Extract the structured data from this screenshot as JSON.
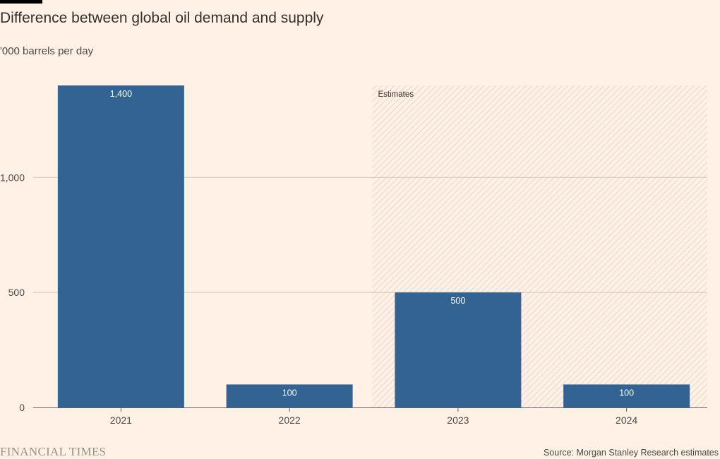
{
  "title": "Difference between global oil demand and supply",
  "subtitle": "'000 barrels per day",
  "source": "Source: Morgan Stanley Research estimates",
  "logo": "FINANCIAL TIMES",
  "colors": {
    "bar": "#336392",
    "background": "#FFF1E5",
    "grid": "#CEC6B9",
    "hatch": "#F0DDD4"
  },
  "chart_data": {
    "type": "bar",
    "categories": [
      "2021",
      "2022",
      "2023",
      "2024"
    ],
    "values": [
      1400,
      100,
      500,
      100
    ],
    "value_labels": [
      "1,400",
      "100",
      "500",
      "100"
    ],
    "ylim": [
      0,
      1400
    ],
    "yticks": [
      0,
      500,
      1000
    ],
    "ytick_labels": [
      "0",
      "500",
      "1,000"
    ],
    "grid": true,
    "shaded_region": {
      "from_category": "2023",
      "to_category": "2024",
      "label": "Estimates"
    }
  }
}
